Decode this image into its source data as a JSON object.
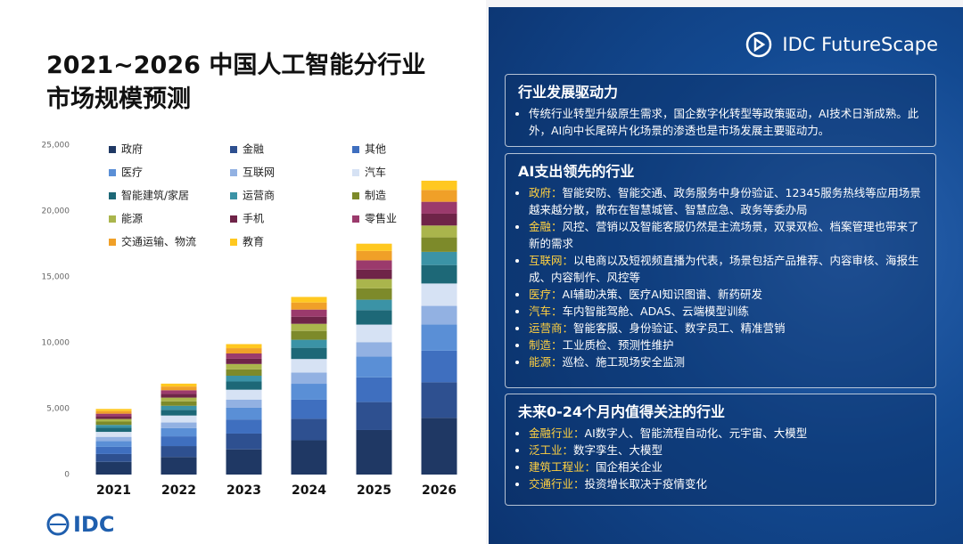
{
  "chart_data": {
    "type": "stacked_bar",
    "title": "2021~2026 中国人工智能分行业\n市场规模预测",
    "categories": [
      "2021",
      "2022",
      "2023",
      "2024",
      "2025",
      "2026"
    ],
    "ylim": [
      0,
      25000
    ],
    "yticks": [
      0,
      {
        "value": 5000,
        "label": "5,000"
      },
      {
        "value": 10000,
        "label": "10,000"
      },
      {
        "value": 15000,
        "label": "15,000"
      },
      {
        "value": 20000,
        "label": "20,000"
      },
      {
        "value": 25000,
        "label": "25,000"
      }
    ],
    "grid": false,
    "legend": "top-left",
    "series": [
      {
        "name": "政府",
        "color": "#1f3864",
        "values": [
          960,
          1330,
          1910,
          2600,
          3380,
          4300
        ]
      },
      {
        "name": "金融",
        "color": "#2e5090",
        "values": [
          600,
          830,
          1200,
          1630,
          2120,
          2700
        ]
      },
      {
        "name": "其他",
        "color": "#3f6fbf",
        "values": [
          540,
          740,
          1070,
          1450,
          1880,
          2400
        ]
      },
      {
        "name": "医疗",
        "color": "#5a8fd6",
        "values": [
          450,
          620,
          890,
          1210,
          1570,
          2000
        ]
      },
      {
        "name": "互联网",
        "color": "#92b1e2",
        "values": [
          310,
          430,
          620,
          850,
          1100,
          1400
        ]
      },
      {
        "name": "汽车",
        "color": "#d6e2f4",
        "values": [
          380,
          530,
          750,
          1030,
          1330,
          1700
        ]
      },
      {
        "name": "智能建筑/家居",
        "color": "#1d6877",
        "values": [
          310,
          430,
          620,
          850,
          1100,
          1400
        ]
      },
      {
        "name": "运营商",
        "color": "#3b93a6",
        "values": [
          220,
          310,
          440,
          610,
          790,
          1000
        ]
      },
      {
        "name": "制造",
        "color": "#7d8a2a",
        "values": [
          250,
          340,
          490,
          670,
          860,
          1100
        ]
      },
      {
        "name": "能源",
        "color": "#aab54c",
        "values": [
          200,
          280,
          400,
          540,
          710,
          900
        ]
      },
      {
        "name": "手机",
        "color": "#6f2448",
        "values": [
          200,
          280,
          400,
          540,
          710,
          900
        ]
      },
      {
        "name": "零售业",
        "color": "#9b3a6c",
        "values": [
          200,
          280,
          400,
          540,
          710,
          900
        ]
      },
      {
        "name": "交通运输、物流",
        "color": "#f0a028",
        "values": [
          200,
          280,
          400,
          540,
          710,
          900
        ]
      },
      {
        "name": "教育",
        "color": "#ffc820",
        "values": [
          160,
          220,
          310,
          420,
          550,
          700
        ]
      }
    ]
  },
  "footer": {
    "logo": "IDC"
  },
  "panel": {
    "logo": "IDC FutureScape",
    "sections": [
      {
        "title": "行业发展驱动力",
        "items": [
          {
            "text": "传统行业转型升级原生需求，国企数字化转型等政策驱动，AI技术日渐成熟。此外，AI向中长尾碎片化场景的渗透也是市场发展主要驱动力。"
          }
        ]
      },
      {
        "title": "AI支出领先的行业",
        "items": [
          {
            "label": "政府：",
            "text": "智能安防、智能交通、政务服务中身份验证、12345服务热线等应用场景越来越分散，散布在智慧城管、智慧应急、政务等委办局"
          },
          {
            "label": "金融：",
            "text": "风控、营销以及智能客服仍然是主流场景，双录双检、档案管理也带来了新的需求"
          },
          {
            "label": "互联网：",
            "text": "以电商以及短视频直播为代表，场景包括产品推荐、内容审核、海报生成、内容制作、风控等"
          },
          {
            "label": "医疗：",
            "text": "AI辅助决策、医疗AI知识图谱、新药研发"
          },
          {
            "label": "汽车：",
            "text": "车内智能驾舱、ADAS、云端模型训练"
          },
          {
            "label": "运营商：",
            "text": "智能客服、身份验证、数字员工、精准营销"
          },
          {
            "label": "制造：",
            "text": "工业质检、预测性维护"
          },
          {
            "label": "能源：",
            "text": "巡检、施工现场安全监测"
          }
        ]
      },
      {
        "title": "未来0-24个月内值得关注的行业",
        "items": [
          {
            "label": "金融行业：",
            "text": "AI数字人、智能流程自动化、元宇宙、大模型"
          },
          {
            "label": "泛工业：",
            "text": "数字孪生、大模型"
          },
          {
            "label": "建筑工程业：",
            "text": "国企相关企业"
          },
          {
            "label": "交通行业：",
            "text": "投资增长取决于疫情变化"
          }
        ]
      }
    ]
  }
}
